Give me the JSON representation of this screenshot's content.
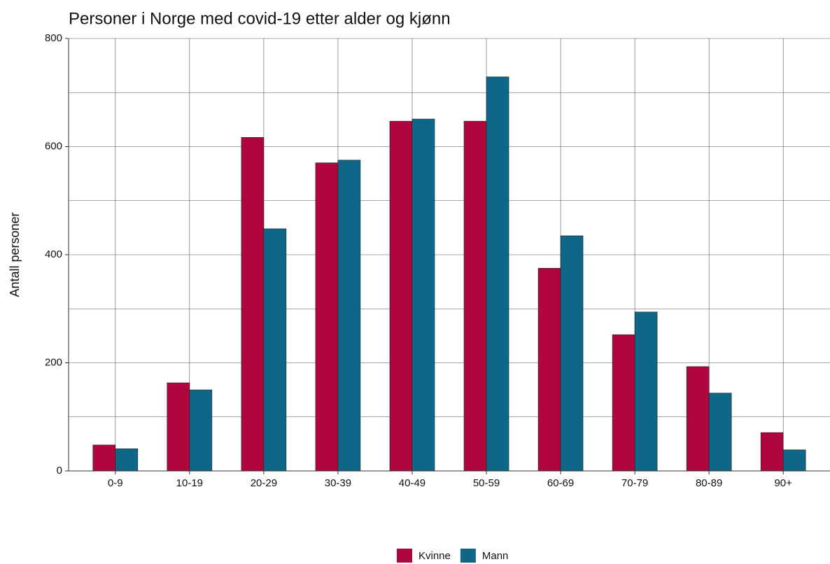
{
  "chart_data": {
    "type": "bar",
    "title": "Personer i Norge med covid-19 etter alder og kjønn",
    "y_label": "Antall personer",
    "categories": [
      "0-9",
      "10-19",
      "20-29",
      "30-39",
      "40-49",
      "50-59",
      "60-69",
      "70-79",
      "80-89",
      "90+"
    ],
    "series": [
      {
        "name": "Kvinne",
        "color": "#b0063e",
        "values": [
          48,
          163,
          617,
          570,
          647,
          647,
          375,
          252,
          193,
          71
        ]
      },
      {
        "name": "Mann",
        "color": "#0e6787",
        "values": [
          41,
          150,
          448,
          575,
          651,
          729,
          435,
          294,
          144,
          39
        ]
      }
    ],
    "ylim": [
      0,
      800
    ],
    "yticks": [
      0,
      200,
      400,
      600,
      800
    ],
    "minor_yticks": [
      100,
      300,
      500,
      700
    ],
    "grid": true,
    "legend": "bottom"
  }
}
